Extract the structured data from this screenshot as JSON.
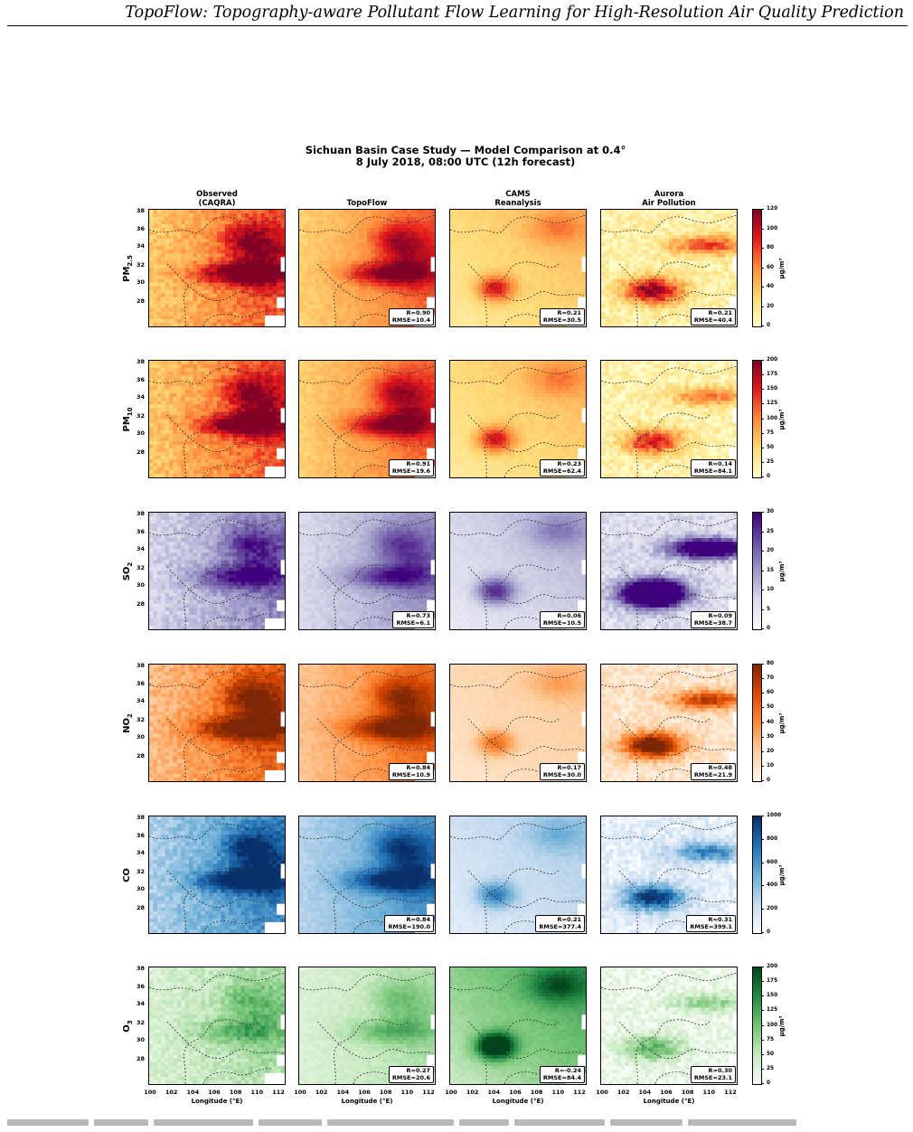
{
  "header": {
    "running_title": "TopoFlow: Topography-aware Pollutant Flow Learning for High-Resolution Air Quality Prediction"
  },
  "figure": {
    "title_line1": "Sichuan Basin Case Study — Model Comparison at 0.4°",
    "title_line2": "8 July 2018, 08:00 UTC (12h forecast)",
    "columns": [
      {
        "line1": "Observed",
        "line2": "(CAQRA)"
      },
      {
        "line1": "",
        "line2": "TopoFlow"
      },
      {
        "line1": "CAMS",
        "line2": "Reanalysis"
      },
      {
        "line1": "Aurora",
        "line2": "Air Pollution"
      }
    ],
    "x_axis": {
      "label": "Longitude (°E)",
      "ticks": [
        "100",
        "102",
        "104",
        "106",
        "108",
        "110",
        "112"
      ]
    },
    "y_axis": {
      "ticks": [
        "38",
        "36",
        "34",
        "32",
        "30",
        "28"
      ]
    },
    "colorbar_unit": "µg/m³",
    "rows": [
      {
        "pollutant": "PM",
        "subscript": "2.5",
        "cmap": [
          "#ffffcc",
          "#fed976",
          "#fd8d3c",
          "#e31a1c",
          "#800026"
        ],
        "colorbar_ticks": [
          "120",
          "100",
          "80",
          "60",
          "40",
          "20",
          "0"
        ],
        "stats": [
          null,
          {
            "r": "R=0.90",
            "rmse": "RMSE=10.4"
          },
          {
            "r": "R=0.21",
            "rmse": "RMSE=30.5"
          },
          {
            "r": "R=0.21",
            "rmse": "RMSE=40.4"
          }
        ]
      },
      {
        "pollutant": "PM",
        "subscript": "10",
        "cmap": [
          "#ffffcc",
          "#fed976",
          "#fd8d3c",
          "#e31a1c",
          "#800026"
        ],
        "colorbar_ticks": [
          "200",
          "175",
          "150",
          "125",
          "100",
          "75",
          "50",
          "25",
          "0"
        ],
        "stats": [
          null,
          {
            "r": "R=0.91",
            "rmse": "RMSE=19.6"
          },
          {
            "r": "R=0.23",
            "rmse": "RMSE=62.4"
          },
          {
            "r": "R=0.14",
            "rmse": "RMSE=84.1"
          }
        ]
      },
      {
        "pollutant": "SO",
        "subscript": "2",
        "cmap": [
          "#fcfbfd",
          "#dadaeb",
          "#9e9ac8",
          "#6a51a3",
          "#3f007d"
        ],
        "colorbar_ticks": [
          "30",
          "25",
          "20",
          "15",
          "10",
          "5",
          "0"
        ],
        "stats": [
          null,
          {
            "r": "R=0.73",
            "rmse": "RMSE=6.1"
          },
          {
            "r": "R=0.06",
            "rmse": "RMSE=10.5"
          },
          {
            "r": "R=0.09",
            "rmse": "RMSE=38.7"
          }
        ]
      },
      {
        "pollutant": "NO",
        "subscript": "2",
        "cmap": [
          "#fff5eb",
          "#fdd0a2",
          "#fd8d3c",
          "#d94801",
          "#7f2704"
        ],
        "colorbar_ticks": [
          "80",
          "70",
          "60",
          "50",
          "40",
          "30",
          "20",
          "10",
          "0"
        ],
        "stats": [
          null,
          {
            "r": "R=0.84",
            "rmse": "RMSE=10.9"
          },
          {
            "r": "R=0.17",
            "rmse": "RMSE=30.0"
          },
          {
            "r": "R=0.48",
            "rmse": "RMSE=21.9"
          }
        ]
      },
      {
        "pollutant": "CO",
        "subscript": "",
        "cmap": [
          "#f7fbff",
          "#c6dbef",
          "#6baed6",
          "#2171b5",
          "#08306b"
        ],
        "colorbar_ticks": [
          "1000",
          "800",
          "600",
          "400",
          "200",
          "0"
        ],
        "stats": [
          null,
          {
            "r": "R=0.84",
            "rmse": "RMSE=190.0"
          },
          {
            "r": "R=0.21",
            "rmse": "RMSE=377.4"
          },
          {
            "r": "R=0.31",
            "rmse": "RMSE=399.1"
          }
        ]
      },
      {
        "pollutant": "O",
        "subscript": "3",
        "cmap": [
          "#f7fcf5",
          "#c7e9c0",
          "#74c476",
          "#238b45",
          "#00441b"
        ],
        "colorbar_ticks": [
          "200",
          "175",
          "150",
          "125",
          "100",
          "75",
          "50",
          "25",
          "0"
        ],
        "stats": [
          null,
          {
            "r": "R=0.27",
            "rmse": "RMSE=20.6"
          },
          {
            "r": "R=-0.24",
            "rmse": "RMSE=84.4"
          },
          {
            "r": "R=0.30",
            "rmse": "RMSE=23.1"
          }
        ]
      }
    ]
  }
}
